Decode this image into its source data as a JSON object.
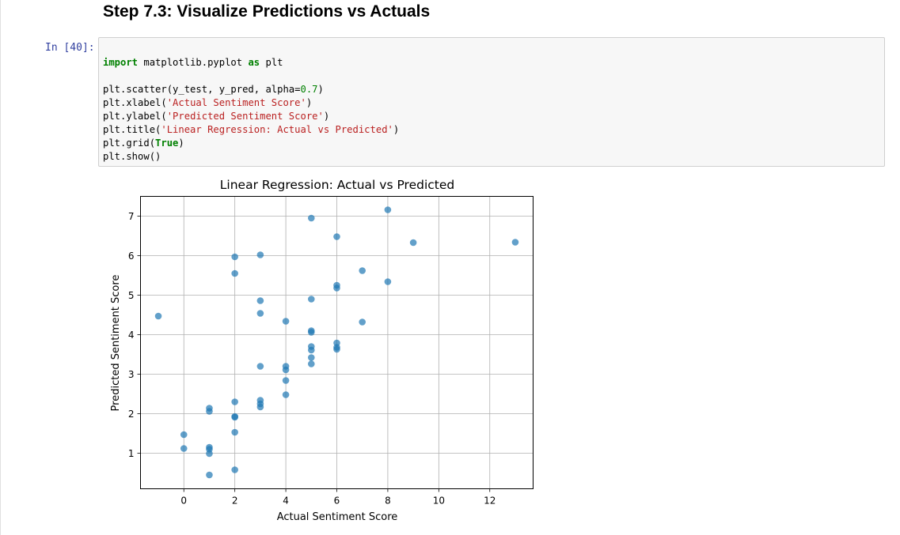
{
  "markdown": {
    "heading": "Step 7.3: Visualize Predictions vs Actuals"
  },
  "code_cell": {
    "prompt": "In [40]:",
    "lines": [
      [
        {
          "t": "import",
          "c": "kw"
        },
        {
          "t": " matplotlib.pyplot ",
          "c": ""
        },
        {
          "t": "as",
          "c": "kw"
        },
        {
          "t": " plt",
          "c": ""
        }
      ],
      [],
      [
        {
          "t": "plt.scatter(y_test, y_pred, alpha=",
          "c": ""
        },
        {
          "t": "0.7",
          "c": "num"
        },
        {
          "t": ")",
          "c": ""
        }
      ],
      [
        {
          "t": "plt.xlabel(",
          "c": ""
        },
        {
          "t": "'Actual Sentiment Score'",
          "c": "str"
        },
        {
          "t": ")",
          "c": ""
        }
      ],
      [
        {
          "t": "plt.ylabel(",
          "c": ""
        },
        {
          "t": "'Predicted Sentiment Score'",
          "c": "str"
        },
        {
          "t": ")",
          "c": ""
        }
      ],
      [
        {
          "t": "plt.title(",
          "c": ""
        },
        {
          "t": "'Linear Regression: Actual vs Predicted'",
          "c": "str"
        },
        {
          "t": ")",
          "c": ""
        }
      ],
      [
        {
          "t": "plt.grid(",
          "c": ""
        },
        {
          "t": "True",
          "c": "kw"
        },
        {
          "t": ")",
          "c": ""
        }
      ],
      [
        {
          "t": "plt.show()",
          "c": ""
        }
      ]
    ]
  },
  "chart_data": {
    "type": "scatter",
    "title": "Linear Regression: Actual vs Predicted",
    "xlabel": "Actual Sentiment Score",
    "ylabel": "Predicted Sentiment Score",
    "xlim": [
      -1.7,
      13.7
    ],
    "ylim": [
      0.1,
      7.5
    ],
    "xticks": [
      0,
      2,
      4,
      6,
      8,
      10,
      12
    ],
    "yticks": [
      1,
      2,
      3,
      4,
      5,
      6,
      7
    ],
    "grid": true,
    "alpha": 0.7,
    "marker_color": "#1f77b4",
    "points": [
      {
        "x": -1,
        "y": 4.47
      },
      {
        "x": 0,
        "y": 1.47
      },
      {
        "x": 0,
        "y": 1.12
      },
      {
        "x": 1,
        "y": 2.14
      },
      {
        "x": 1,
        "y": 2.06
      },
      {
        "x": 1,
        "y": 1.15
      },
      {
        "x": 1,
        "y": 1.1
      },
      {
        "x": 1,
        "y": 0.99
      },
      {
        "x": 1,
        "y": 0.45
      },
      {
        "x": 2,
        "y": 5.97
      },
      {
        "x": 2,
        "y": 5.55
      },
      {
        "x": 2,
        "y": 2.3
      },
      {
        "x": 2,
        "y": 1.93
      },
      {
        "x": 2,
        "y": 1.91
      },
      {
        "x": 2,
        "y": 1.53
      },
      {
        "x": 2,
        "y": 0.58
      },
      {
        "x": 3,
        "y": 6.02
      },
      {
        "x": 3,
        "y": 4.86
      },
      {
        "x": 3,
        "y": 4.54
      },
      {
        "x": 3,
        "y": 3.2
      },
      {
        "x": 3,
        "y": 2.34
      },
      {
        "x": 3,
        "y": 2.25
      },
      {
        "x": 3,
        "y": 2.17
      },
      {
        "x": 4,
        "y": 4.34
      },
      {
        "x": 4,
        "y": 3.2
      },
      {
        "x": 4,
        "y": 3.11
      },
      {
        "x": 4,
        "y": 2.84
      },
      {
        "x": 4,
        "y": 2.48
      },
      {
        "x": 5,
        "y": 6.95
      },
      {
        "x": 5,
        "y": 4.9
      },
      {
        "x": 5,
        "y": 4.1
      },
      {
        "x": 5,
        "y": 4.06
      },
      {
        "x": 5,
        "y": 3.7
      },
      {
        "x": 5,
        "y": 3.61
      },
      {
        "x": 5,
        "y": 3.42
      },
      {
        "x": 5,
        "y": 3.26
      },
      {
        "x": 6,
        "y": 6.48
      },
      {
        "x": 6,
        "y": 5.25
      },
      {
        "x": 6,
        "y": 5.18
      },
      {
        "x": 6,
        "y": 3.79
      },
      {
        "x": 6,
        "y": 3.68
      },
      {
        "x": 6,
        "y": 3.63
      },
      {
        "x": 7,
        "y": 5.62
      },
      {
        "x": 7,
        "y": 4.32
      },
      {
        "x": 8,
        "y": 7.16
      },
      {
        "x": 8,
        "y": 5.34
      },
      {
        "x": 9,
        "y": 6.33
      },
      {
        "x": 13,
        "y": 6.34
      }
    ]
  }
}
